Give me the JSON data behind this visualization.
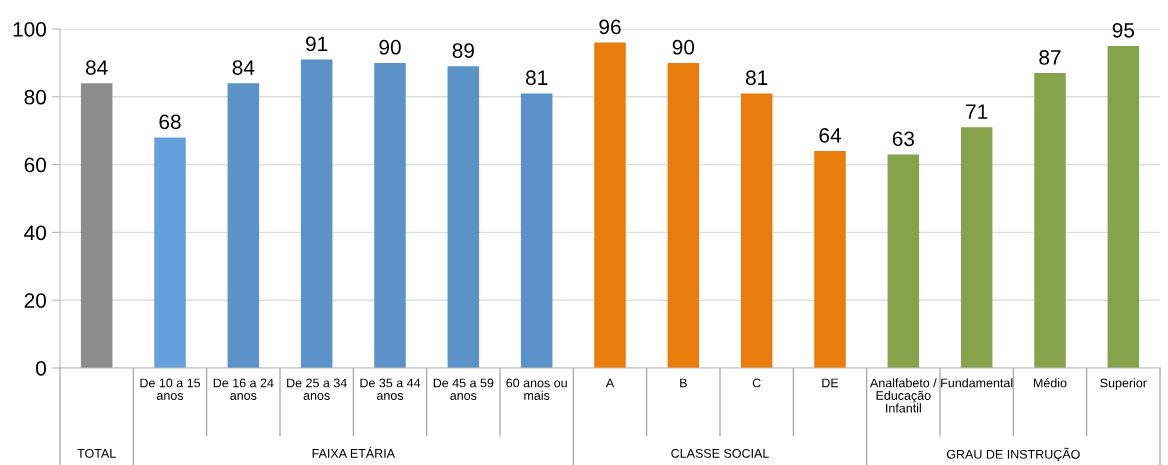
{
  "chart_data": {
    "type": "bar",
    "categories": [
      null,
      "De 10 a 15\nanos",
      "De 16 a 24\nanos",
      "De 25 a 34\nanos",
      "De 35 a 44\nanos",
      "De 45 a 59\nanos",
      "60 anos ou\nmais",
      "A",
      "B",
      "C",
      "DE",
      "Analfabeto /\nEducação\nInfantil",
      "Fundamental",
      "Médio",
      "Superior"
    ],
    "series": [
      {
        "colors": [
          "#8c8c8c",
          null,
          null,
          null,
          null,
          null,
          null,
          null,
          null,
          null,
          null,
          null,
          null,
          null,
          null
        ],
        "values": [
          84,
          null,
          null,
          null,
          null,
          null,
          null,
          null,
          null,
          null,
          null,
          null,
          null,
          null,
          null
        ]
      },
      {
        "colors": [
          null,
          "#64a0dc",
          "#5b92c8",
          "#5b92c8",
          "#5b92c8",
          "#5b92c8",
          "#5b92c8",
          null,
          null,
          null,
          null,
          null,
          null,
          null,
          null
        ],
        "values": [
          null,
          68,
          84,
          91,
          90,
          89,
          81,
          null,
          null,
          null,
          null,
          null,
          null,
          null,
          null
        ]
      },
      {
        "colors": [
          null,
          null,
          null,
          null,
          null,
          null,
          null,
          "#e87d0d",
          "#e87d0d",
          "#e87d0d",
          "#e87d0d",
          null,
          null,
          null,
          null
        ],
        "values": [
          null,
          null,
          null,
          null,
          null,
          null,
          null,
          96,
          90,
          81,
          64,
          null,
          null,
          null,
          null
        ]
      },
      {
        "colors": [
          null,
          null,
          null,
          null,
          null,
          null,
          null,
          null,
          null,
          null,
          null,
          "#86a24a",
          "#86a24a",
          "#86a24a",
          "#86a24a"
        ],
        "values": [
          null,
          null,
          null,
          null,
          null,
          null,
          null,
          null,
          null,
          null,
          null,
          63,
          71,
          87,
          95
        ]
      }
    ],
    "annotations": [
      "TOTAL",
      "FAIXA ETÁRIA",
      "CLASSE SOCIAL",
      "GRAU DE INSTRUÇÃO"
    ],
    "ylim": [
      0,
      100
    ],
    "yticks": [
      0,
      20,
      40,
      60,
      80,
      100
    ],
    "grid": "y",
    "data_labels": true
  }
}
